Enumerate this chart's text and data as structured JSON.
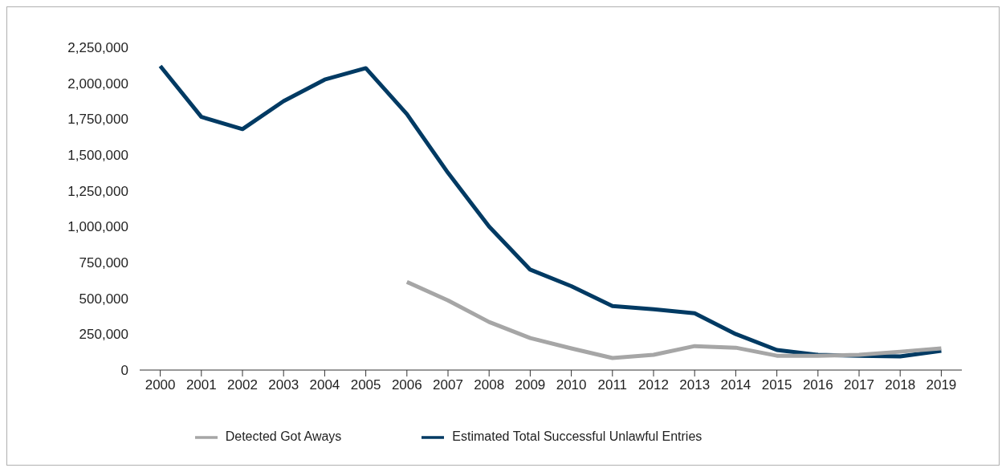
{
  "chart_data": {
    "type": "line",
    "categories": [
      "2000",
      "2001",
      "2002",
      "2003",
      "2004",
      "2005",
      "2006",
      "2007",
      "2008",
      "2009",
      "2010",
      "2011",
      "2012",
      "2013",
      "2014",
      "2015",
      "2016",
      "2017",
      "2018",
      "2019"
    ],
    "series": [
      {
        "name": "Estimated Total Successful Unlawful Entries",
        "color": "#003a63",
        "values": [
          2120000,
          1765000,
          1680000,
          1875000,
          2025000,
          2105000,
          1785000,
          1375000,
          1000000,
          700000,
          585000,
          447000,
          424000,
          396000,
          251000,
          140000,
          106000,
          100000,
          95000,
          134000
        ]
      },
      {
        "name": "Detected Got Aways",
        "color": "#a6a6a6",
        "values": [
          null,
          null,
          null,
          null,
          null,
          null,
          614000,
          486000,
          335000,
          223000,
          151000,
          84000,
          106000,
          167000,
          156000,
          100000,
          100000,
          106000,
          128000,
          151000
        ]
      }
    ],
    "ylim": [
      0,
      2250000
    ],
    "yticks": [
      {
        "value": 0,
        "label": "0"
      },
      {
        "value": 250000,
        "label": "250,000"
      },
      {
        "value": 500000,
        "label": "500,000"
      },
      {
        "value": 750000,
        "label": "750,000"
      },
      {
        "value": 1000000,
        "label": "1,000,000"
      },
      {
        "value": 1250000,
        "label": "1,250,000"
      },
      {
        "value": 1500000,
        "label": "1,500,000"
      },
      {
        "value": 1750000,
        "label": "1,750,000"
      },
      {
        "value": 2000000,
        "label": "2,000,000"
      },
      {
        "value": 2250000,
        "label": "2,250,000"
      }
    ],
    "grid": false,
    "legend": "bottom",
    "marker": "none",
    "line_style": "solid"
  }
}
